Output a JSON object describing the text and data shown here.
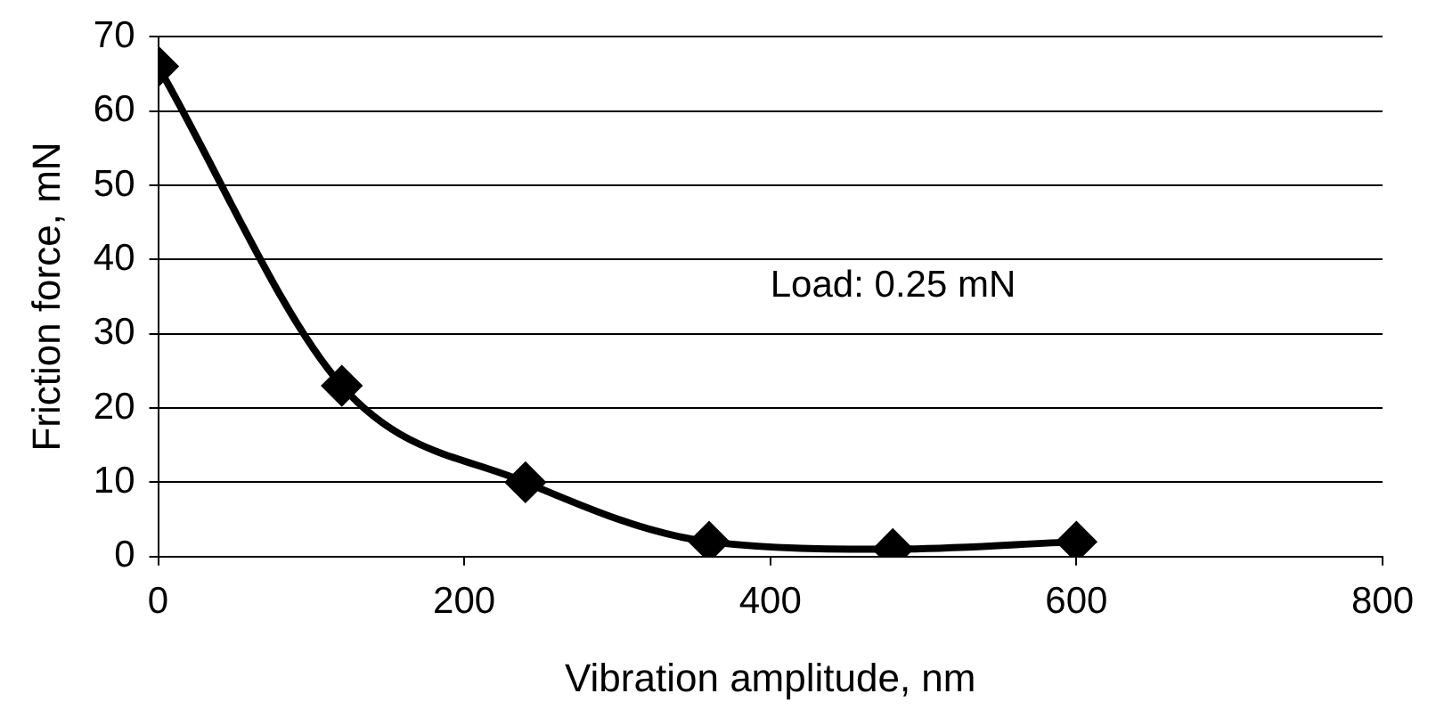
{
  "chart_data": {
    "type": "line",
    "xlabel": "Vibration amplitude, nm",
    "ylabel": "Friction force, mN",
    "x": [
      0,
      120,
      240,
      360,
      480,
      600
    ],
    "series": [
      {
        "color": "#000000",
        "values": [
          66,
          23,
          10,
          2,
          1,
          2
        ]
      }
    ],
    "xlim": [
      0,
      800
    ],
    "xticks": [
      0,
      200,
      400,
      600,
      800
    ],
    "ylim": [
      0,
      70
    ],
    "yticks": [
      0,
      10,
      20,
      30,
      40,
      50,
      60,
      70
    ],
    "grid": "y",
    "legend": false,
    "marker": "diamond",
    "line_style": "solid",
    "annotations": [
      "Load: 0.25 mN"
    ]
  }
}
